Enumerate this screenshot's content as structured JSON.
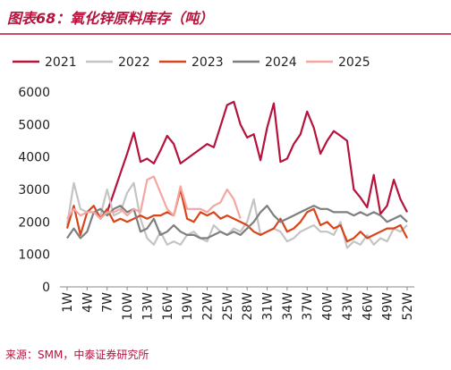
{
  "chart_data": {
    "type": "line",
    "title": "图表68：氧化锌原料库存（吨）",
    "source": "来源：SMM，中泰证券研究所",
    "categories": [
      "1W",
      null,
      null,
      "4W",
      null,
      null,
      "7W",
      null,
      null,
      "10W",
      null,
      null,
      "13W",
      null,
      null,
      "16W",
      null,
      null,
      "19W",
      null,
      null,
      "22W",
      null,
      null,
      "25W",
      null,
      null,
      "28W",
      null,
      null,
      "31W",
      null,
      null,
      "34W",
      null,
      null,
      "37W",
      null,
      null,
      "40W",
      null,
      null,
      "43W",
      null,
      null,
      "46W",
      null,
      null,
      "49W",
      null,
      null,
      "52W"
    ],
    "ylim": [
      0,
      6000
    ],
    "yticks": [
      0,
      1000,
      2000,
      3000,
      4000,
      5000,
      6000
    ],
    "grid": false,
    "legend": "top",
    "series": [
      {
        "name": "2021",
        "color": "#b5123c",
        "values": [
          null,
          null,
          null,
          null,
          null,
          null,
          2300,
          2900,
          3500,
          4100,
          4750,
          3850,
          3950,
          3800,
          4200,
          4650,
          4400,
          3800,
          3950,
          4100,
          4250,
          4400,
          4300,
          4950,
          5600,
          5700,
          5000,
          4600,
          4700,
          3900,
          4900,
          5650,
          3850,
          3950,
          4400,
          4700,
          5400,
          4900,
          4100,
          4500,
          4800,
          4650,
          4500,
          3000,
          2750,
          2450,
          3450,
          2250,
          2500,
          3300,
          2700,
          2300
        ]
      },
      {
        "name": "2022",
        "color": "#c4c4c4",
        "values": [
          1900,
          3200,
          2400,
          2300,
          2300,
          2200,
          3000,
          2200,
          2300,
          2900,
          3200,
          2100,
          1500,
          1300,
          1700,
          1300,
          1400,
          1300,
          1600,
          1700,
          1500,
          1400,
          1900,
          1700,
          1600,
          1800,
          1700,
          2000,
          2700,
          1600,
          1700,
          1800,
          1700,
          1400,
          1500,
          1700,
          1800,
          1900,
          1700,
          1700,
          1600,
          2000,
          1200,
          1400,
          1300,
          1600,
          1300,
          1500,
          1400,
          1800,
          1700,
          1900
        ]
      },
      {
        "name": "2023",
        "color": "#d9441a",
        "values": [
          1800,
          2500,
          1600,
          2300,
          2500,
          2100,
          2400,
          2000,
          2100,
          2000,
          2100,
          2200,
          2100,
          2200,
          2200,
          2300,
          2200,
          3000,
          2100,
          2000,
          2300,
          2200,
          2300,
          2100,
          2200,
          2100,
          2000,
          1900,
          1700,
          1600,
          1700,
          1800,
          2100,
          1700,
          1800,
          2000,
          2300,
          2400,
          1900,
          2000,
          1800,
          1900,
          1400,
          1500,
          1700,
          1500,
          1600,
          1700,
          1800,
          1800,
          1900,
          1500
        ]
      },
      {
        "name": "2024",
        "color": "#7f7f7f",
        "values": [
          1500,
          1800,
          1500,
          1700,
          2300,
          2400,
          2200,
          2400,
          2500,
          2300,
          2400,
          1700,
          1800,
          2100,
          1600,
          1700,
          1900,
          1700,
          1600,
          1600,
          1500,
          1500,
          1600,
          1700,
          1600,
          1700,
          1600,
          1800,
          2000,
          2300,
          2500,
          2200,
          2000,
          2100,
          2200,
          2300,
          2400,
          2500,
          2400,
          2400,
          2300,
          2300,
          2300,
          2200,
          2300,
          2200,
          2300,
          2200,
          2000,
          2100,
          2200,
          2000
        ]
      },
      {
        "name": "2025",
        "color": "#f4a7a0",
        "values": [
          2100,
          2400,
          2200,
          2300,
          2300,
          2100,
          2300,
          2300,
          2400,
          2200,
          2400,
          2300,
          3300,
          3400,
          2900,
          2400,
          2200,
          3100,
          2400,
          2400,
          2400,
          2300,
          2500,
          2600,
          3000,
          2700,
          2100,
          null,
          null,
          null,
          null,
          null,
          null,
          null,
          null,
          null,
          null,
          null,
          null,
          null,
          null,
          null,
          null,
          null,
          null,
          null,
          null,
          null,
          null,
          null,
          null,
          null
        ]
      }
    ]
  }
}
